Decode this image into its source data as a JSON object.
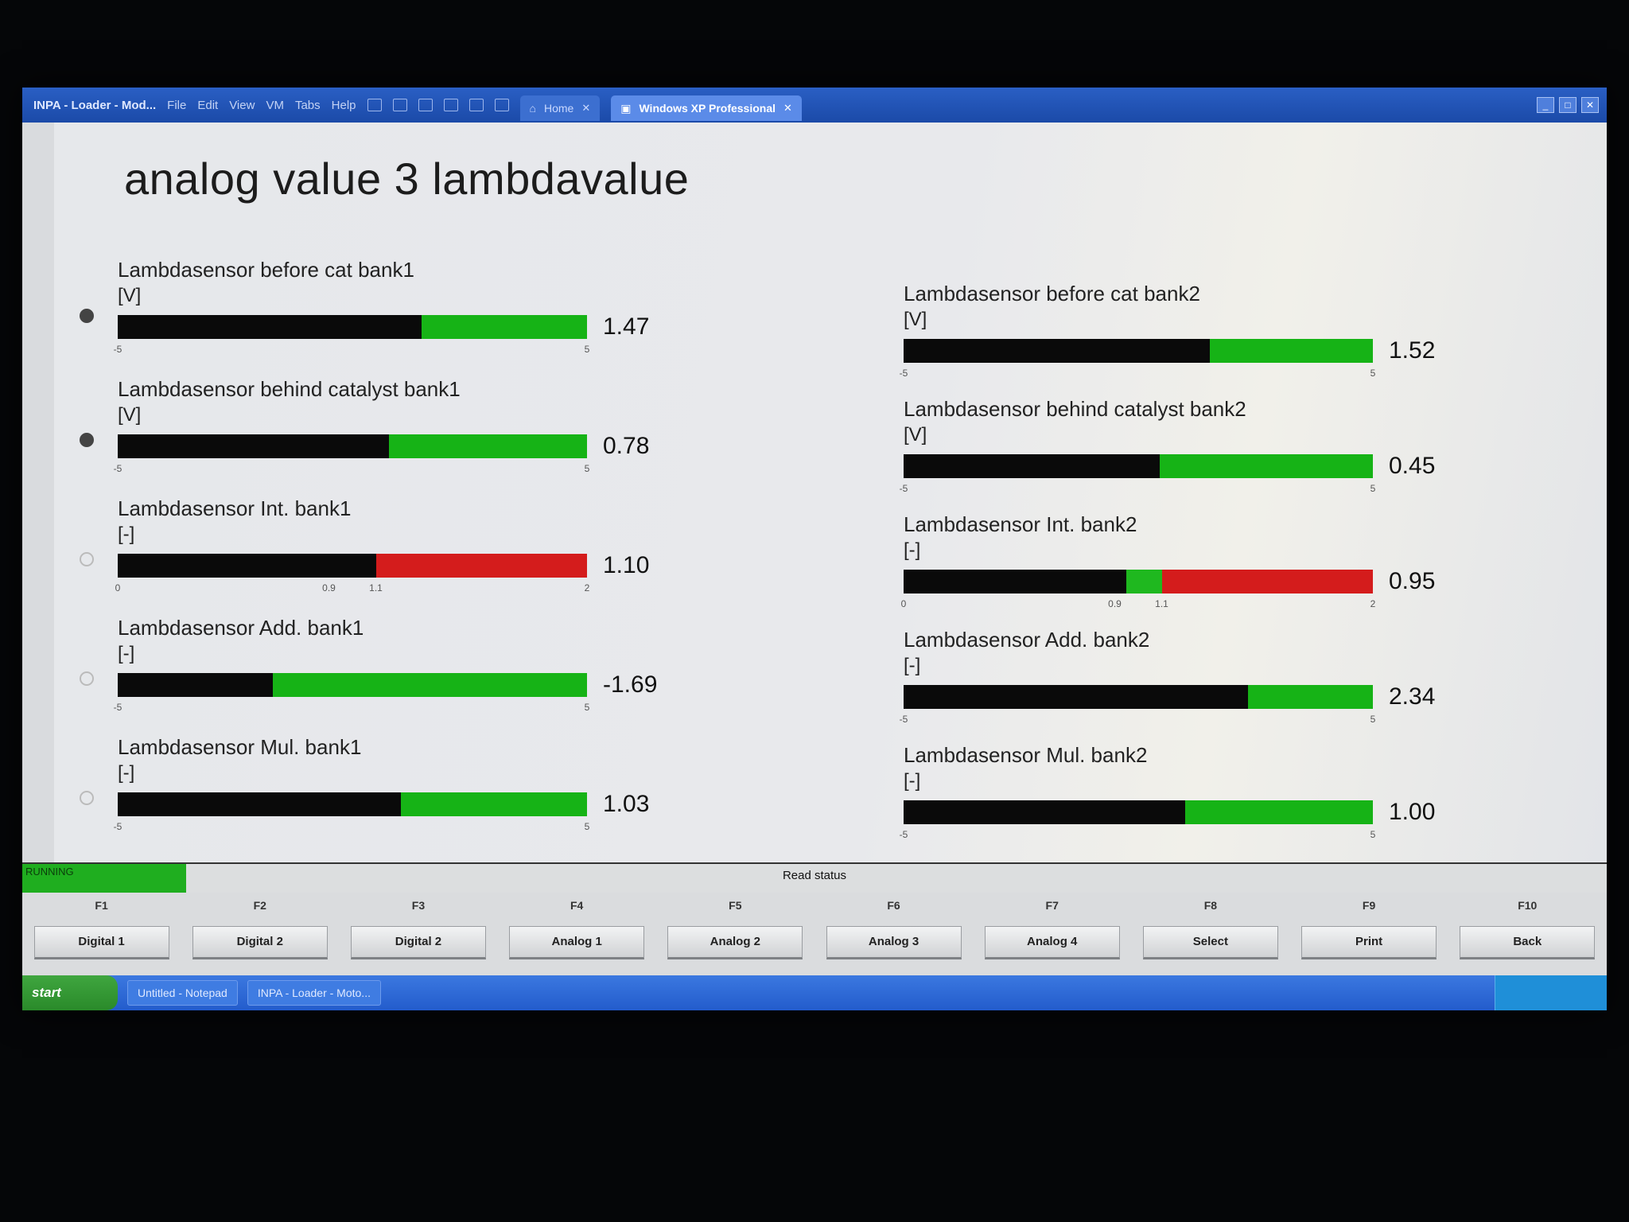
{
  "vm": {
    "app_title": "INPA - Loader - Mod...",
    "menu": [
      "File",
      "Edit",
      "View",
      "VM",
      "Tabs",
      "Help"
    ],
    "tabs": [
      {
        "label": "Home",
        "active": false
      },
      {
        "label": "Windows XP Professional",
        "active": true
      }
    ]
  },
  "page": {
    "title": "analog value 3 lambdavalue"
  },
  "gauges": [
    {
      "id": "before-cat-bank1",
      "label": "Lambdasensor before cat bank1",
      "unit": "[V]",
      "value": "1.47",
      "min": -5,
      "max": 5,
      "num": 1.47,
      "style": "green",
      "ticks": [
        "-5",
        "5"
      ]
    },
    {
      "id": "behind-cat-bank1",
      "label": "Lambdasensor behind catalyst bank1",
      "unit": "[V]",
      "value": "0.78",
      "min": -5,
      "max": 5,
      "num": 0.78,
      "style": "green",
      "ticks": [
        "-5",
        "5"
      ]
    },
    {
      "id": "int-bank1",
      "label": "Lambdasensor Int. bank1",
      "unit": "[-]",
      "value": "1.10",
      "min": 0,
      "max": 2,
      "num": 1.1,
      "style": "red",
      "band": [
        0.9,
        1.1
      ],
      "ticks": [
        "0",
        "0.9",
        "1.1",
        "2"
      ]
    },
    {
      "id": "add-bank1",
      "label": "Lambdasensor Add. bank1",
      "unit": "[-]",
      "value": "-1.69",
      "min": -5,
      "max": 5,
      "num": -1.69,
      "style": "green",
      "ticks": [
        "-5",
        "5"
      ]
    },
    {
      "id": "mul-bank1",
      "label": "Lambdasensor Mul. bank1",
      "unit": "[-]",
      "value": "1.03",
      "min": -5,
      "max": 5,
      "num": 1.03,
      "style": "green",
      "ticks": [
        "-5",
        "5"
      ]
    },
    {
      "id": "before-cat-bank2",
      "label": "Lambdasensor before cat bank2",
      "unit": "[V]",
      "value": "1.52",
      "min": -5,
      "max": 5,
      "num": 1.52,
      "style": "green",
      "ticks": [
        "-5",
        "5"
      ]
    },
    {
      "id": "behind-cat-bank2",
      "label": "Lambdasensor behind catalyst bank2",
      "unit": "[V]",
      "value": "0.45",
      "min": -5,
      "max": 5,
      "num": 0.45,
      "style": "green",
      "ticks": [
        "-5",
        "5"
      ]
    },
    {
      "id": "int-bank2",
      "label": "Lambdasensor Int. bank2",
      "unit": "[-]",
      "value": "0.95",
      "min": 0,
      "max": 2,
      "num": 0.95,
      "style": "red",
      "band": [
        0.9,
        1.1
      ],
      "ticks": [
        "0",
        "0.9",
        "1.1",
        "2"
      ]
    },
    {
      "id": "add-bank2",
      "label": "Lambdasensor Add. bank2",
      "unit": "[-]",
      "value": "2.34",
      "min": -5,
      "max": 5,
      "num": 2.34,
      "style": "green",
      "ticks": [
        "-5",
        "5"
      ]
    },
    {
      "id": "mul-bank2",
      "label": "Lambdasensor Mul. bank2",
      "unit": "[-]",
      "value": "1.00",
      "min": -5,
      "max": 5,
      "num": 1.0,
      "style": "green",
      "ticks": [
        "-5",
        "5"
      ]
    }
  ],
  "status": {
    "running": "RUNNING",
    "read_status": "Read status"
  },
  "fkeys": [
    {
      "code": "F1",
      "label": "Digital 1"
    },
    {
      "code": "F2",
      "label": "Digital 2"
    },
    {
      "code": "F3",
      "label": "Digital 2"
    },
    {
      "code": "F4",
      "label": "Analog 1"
    },
    {
      "code": "F5",
      "label": "Analog 2"
    },
    {
      "code": "F6",
      "label": "Analog 3"
    },
    {
      "code": "F7",
      "label": "Analog 4"
    },
    {
      "code": "F8",
      "label": "Select"
    },
    {
      "code": "F9",
      "label": "Print"
    },
    {
      "code": "F10",
      "label": "Back"
    }
  ],
  "taskbar": {
    "start": "start",
    "items": [
      "Untitled - Notepad",
      "INPA - Loader - Moto..."
    ]
  },
  "colors": {
    "bar_green": "#16b316",
    "bar_red": "#d41c1c",
    "bar_fill": "#0a0a0a",
    "running": "#1fae1f"
  }
}
